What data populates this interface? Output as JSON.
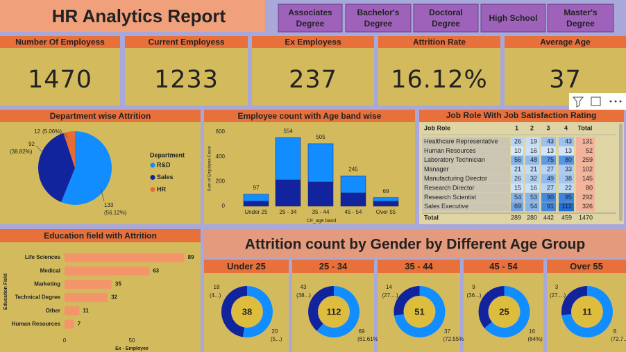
{
  "header": {
    "title": "HR Analytics Report"
  },
  "slicers": [
    "Associates Degree",
    "Bachelor's Degree",
    "Doctoral Degree",
    "High School",
    "Master's Degree"
  ],
  "kpis": [
    {
      "title": "Number Of Employess",
      "value": 1470
    },
    {
      "title": "Current Employess",
      "value": 1233
    },
    {
      "title": "Ex Employess",
      "value": 237
    },
    {
      "title": "Attrition Rate",
      "value": "16.12%"
    },
    {
      "title": "Average Age",
      "value": 37
    }
  ],
  "chart_data": [
    {
      "type": "pie",
      "title": "Department wise Attrition",
      "legend_title": "Department",
      "categories": [
        "R&D",
        "Sales",
        "HR"
      ],
      "values": [
        133,
        92,
        12
      ],
      "percent_labels": [
        "(56.12%)",
        "(38.82%)",
        "(5.06%)"
      ],
      "colors": [
        "#118dff",
        "#12239e",
        "#e66c37"
      ]
    },
    {
      "type": "stacked_bar",
      "title": "Employee count with Age band wise",
      "x_label": "CF_age band",
      "y_label": "Sum of Employee Count",
      "categories": [
        "Under 25",
        "25 - 34",
        "35 - 44",
        "45 - 54",
        "Over 55"
      ],
      "series": [
        {
          "color": "#12239e",
          "values": [
            40,
            213,
            196,
            107,
            40
          ]
        },
        {
          "color": "#118dff",
          "values": [
            57,
            341,
            309,
            138,
            29
          ]
        }
      ],
      "totals": [
        97,
        554,
        505,
        245,
        69
      ],
      "ylim": [
        0,
        600
      ],
      "yticks": [
        0,
        200,
        400,
        600
      ]
    },
    {
      "type": "hbar",
      "title": "Education field with Attrition",
      "x_label": "Ex - Employee",
      "y_label": "Education Field",
      "categories": [
        "Life Sciences",
        "Medical",
        "Marketing",
        "Technical Degree",
        "Other",
        "Human Resources"
      ],
      "values": [
        89,
        63,
        35,
        32,
        11,
        7
      ],
      "color": "#f4946b",
      "xlim": [
        0,
        100
      ],
      "xticks": [
        0,
        50
      ]
    },
    {
      "type": "donut",
      "title": "Attrition count by Gender by Different Age Group",
      "colors": [
        "#12239e",
        "#118dff"
      ],
      "panels": [
        {
          "title": "Under 25",
          "total": 38,
          "values": [
            18,
            20
          ],
          "percent_labels": [
            "(4...)",
            "(5...)"
          ]
        },
        {
          "title": "25 - 34",
          "total": 112,
          "values": [
            43,
            69
          ],
          "percent_labels": [
            "(38...)",
            "(61.61%)"
          ]
        },
        {
          "title": "35 - 44",
          "total": 51,
          "values": [
            14,
            37
          ],
          "percent_labels": [
            "(27....)",
            "(72.55%)"
          ]
        },
        {
          "title": "45 - 54",
          "total": 25,
          "values": [
            9,
            16
          ],
          "percent_labels": [
            "(36...)",
            "(64%)"
          ]
        },
        {
          "title": "Over 55",
          "total": 11,
          "values": [
            3,
            8
          ],
          "percent_labels": [
            "(27....)",
            "(72.7...)"
          ]
        }
      ]
    }
  ],
  "table": {
    "title": "Job Role With Job Satisfaction Rating",
    "columns": [
      "Job Role",
      "1",
      "2",
      "3",
      "4",
      "Total"
    ],
    "rows": [
      [
        "Healthcare Representative",
        26,
        19,
        43,
        43,
        131
      ],
      [
        "Human Resources",
        10,
        16,
        13,
        13,
        52
      ],
      [
        "Laboratory Technician",
        56,
        48,
        75,
        80,
        259
      ],
      [
        "Manager",
        21,
        21,
        27,
        33,
        102
      ],
      [
        "Manufacturing Director",
        26,
        32,
        49,
        38,
        145
      ],
      [
        "Research Director",
        15,
        16,
        27,
        22,
        80
      ],
      [
        "Research Scientist",
        54,
        53,
        90,
        95,
        292
      ],
      [
        "Sales Executive",
        69,
        54,
        91,
        112,
        326
      ],
      [
        "Total",
        289,
        280,
        442,
        459,
        1470
      ]
    ]
  }
}
